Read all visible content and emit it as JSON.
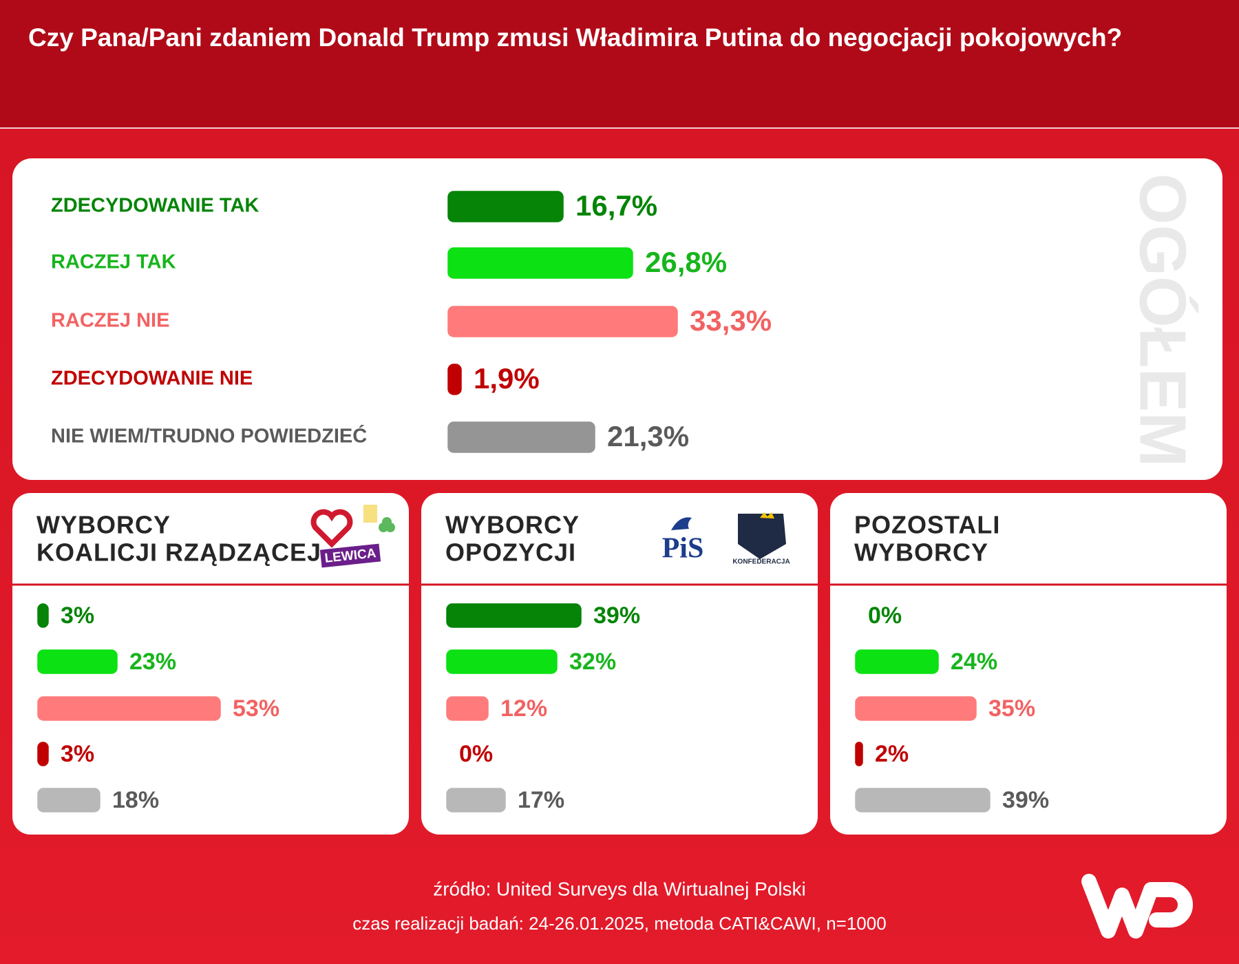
{
  "header": {
    "title": "Czy Pana/Pani zdaniem Donald Trump zmusi Władimira Putina do negocjacji pokojowych?"
  },
  "chart_data": [
    {
      "type": "bar",
      "label": "OGÓŁEM",
      "categories": [
        "ZDECYDOWANIE TAK",
        "RACZEJ TAK",
        "RACZEJ NIE",
        "ZDECYDOWANIE NIE",
        "NIE WIEM/TRUDNO POWIEDZIEĆ"
      ],
      "values": [
        16.7,
        26.8,
        33.3,
        1.9,
        21.3
      ],
      "value_labels": [
        "16,7%",
        "26,8%",
        "33,3%",
        "1,9%",
        "21,3%"
      ],
      "colors": [
        "#058407",
        "#0be113",
        "#ff7b7b",
        "#c00000",
        "#959595"
      ],
      "text_colors": [
        "#058407",
        "#17b51c",
        "#f26262",
        "#c00000",
        "#5a5a5a"
      ]
    },
    {
      "type": "bar",
      "title": [
        "WYBORCY",
        "KOALICJI RZĄDZĄCEJ"
      ],
      "logos": [
        "LEWICA"
      ],
      "values": [
        3,
        23,
        53,
        3,
        18
      ],
      "value_labels": [
        "3%",
        "23%",
        "53%",
        "3%",
        "18%"
      ],
      "colors": [
        "#058407",
        "#0be113",
        "#ff7b7b",
        "#c00000",
        "#b8b8b8"
      ],
      "text_colors": [
        "#058407",
        "#17b51c",
        "#f26262",
        "#c00000",
        "#5a5a5a"
      ]
    },
    {
      "type": "bar",
      "title": [
        "WYBORCY",
        "OPOZYCJI"
      ],
      "logos": [
        "PiS",
        "KONFEDERACJA"
      ],
      "values": [
        39,
        32,
        12,
        0,
        17
      ],
      "value_labels": [
        "39%",
        "32%",
        "12%",
        "0%",
        "17%"
      ],
      "colors": [
        "#058407",
        "#0be113",
        "#ff7b7b",
        "#c00000",
        "#b8b8b8"
      ],
      "text_colors": [
        "#058407",
        "#17b51c",
        "#f26262",
        "#c00000",
        "#5a5a5a"
      ]
    },
    {
      "type": "bar",
      "title": [
        "POZOSTALI",
        "WYBORCY"
      ],
      "values": [
        0,
        24,
        35,
        2,
        39
      ],
      "value_labels": [
        "0%",
        "24%",
        "35%",
        "2%",
        "39%"
      ],
      "colors": [
        "#058407",
        "#0be113",
        "#ff7b7b",
        "#c00000",
        "#b8b8b8"
      ],
      "text_colors": [
        "#058407",
        "#17b51c",
        "#f26262",
        "#c00000",
        "#5a5a5a"
      ]
    }
  ],
  "footer": {
    "source": "źródło: United Surveys dla Wirtualnej Polski",
    "details": "czas realizacji badań: 24-26.01.2025, metoda CATI&CAWI, n=1000"
  }
}
